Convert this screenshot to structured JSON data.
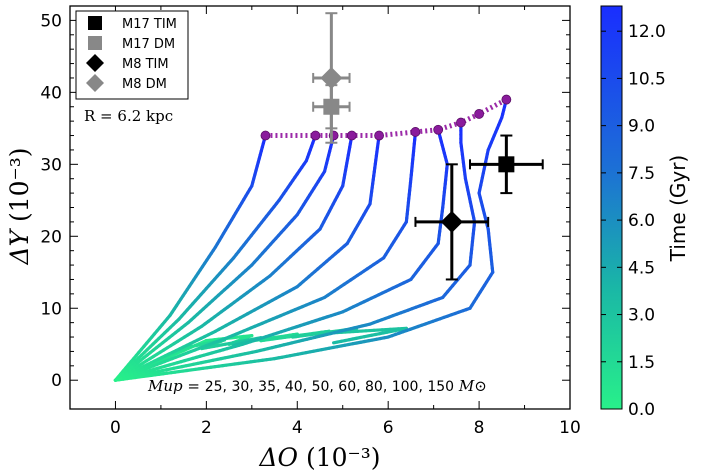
{
  "chart_data": {
    "type": "line",
    "title": "",
    "xlabel": "ΔO",
    "xlabel_unit": "(10⁻³)",
    "ylabel": "ΔY",
    "ylabel_unit": "(10⁻³)",
    "xlim": [
      -1,
      10
    ],
    "ylim": [
      -4,
      52
    ],
    "xticks": [
      "0",
      "2",
      "4",
      "6",
      "8",
      "10"
    ],
    "yticks": [
      "0",
      "10",
      "20",
      "30",
      "40",
      "50"
    ],
    "grid": false,
    "legend_position": "top-left",
    "legend": [
      {
        "label": "M17 TIM",
        "marker": "square",
        "color": "#000000"
      },
      {
        "label": "M17 DM",
        "marker": "square",
        "color": "#888888"
      },
      {
        "label": "M8 TIM",
        "marker": "diamond",
        "color": "#000000"
      },
      {
        "label": "M8 DM",
        "marker": "diamond",
        "color": "#888888"
      }
    ],
    "annotation_radius": "R = 6.2 kpc",
    "annotation_mup_prefix": "Mup = ",
    "annotation_mup_values": "25, 30, 35, 40, 50, 60, 80, 100, 150",
    "annotation_mup_unit": "M⊙",
    "series": [
      {
        "name": "Mup=25",
        "points": [
          [
            0,
            0
          ],
          [
            1.2,
            9
          ],
          [
            2.2,
            18.5
          ],
          [
            3,
            27
          ],
          [
            3.3,
            34
          ]
        ]
      },
      {
        "name": "Mup=30",
        "points": [
          [
            0,
            0
          ],
          [
            1.4,
            8.5
          ],
          [
            2.6,
            17
          ],
          [
            3.6,
            25
          ],
          [
            4.2,
            30.5
          ],
          [
            4.4,
            34
          ]
        ]
      },
      {
        "name": "Mup=35",
        "points": [
          [
            0,
            0
          ],
          [
            1.6,
            8
          ],
          [
            3,
            16
          ],
          [
            4,
            23
          ],
          [
            4.6,
            29
          ],
          [
            4.8,
            34
          ]
        ]
      },
      {
        "name": "Mup=40",
        "points": [
          [
            0,
            0
          ],
          [
            1.9,
            7.5
          ],
          [
            3.4,
            14.5
          ],
          [
            4.5,
            21
          ],
          [
            5,
            27
          ],
          [
            5.2,
            34
          ]
        ]
      },
      {
        "name": "Mup=50",
        "points": [
          [
            0,
            0
          ],
          [
            2.2,
            6.8
          ],
          [
            4,
            13
          ],
          [
            5.1,
            19
          ],
          [
            5.6,
            24.5
          ],
          [
            5.8,
            34
          ]
        ]
      },
      {
        "name": "Mup=60",
        "points": [
          [
            0,
            0
          ],
          [
            2.5,
            6
          ],
          [
            4.6,
            11.5
          ],
          [
            5.9,
            17
          ],
          [
            6.4,
            22
          ],
          [
            6.5,
            28
          ],
          [
            6.6,
            34.5
          ]
        ]
      },
      {
        "name": "Mup=80",
        "points": [
          [
            0,
            0
          ],
          [
            2.8,
            5
          ],
          [
            5,
            9.5
          ],
          [
            6.5,
            14
          ],
          [
            7.1,
            19
          ],
          [
            7.2,
            24
          ],
          [
            7.3,
            30
          ],
          [
            7.1,
            34.8
          ]
        ]
      },
      {
        "name": "Mup=100",
        "points": [
          [
            0,
            0
          ],
          [
            3.1,
            4
          ],
          [
            5.6,
            7.8
          ],
          [
            7.2,
            11.5
          ],
          [
            7.8,
            16
          ],
          [
            7.9,
            22
          ],
          [
            7.7,
            28
          ],
          [
            7.6,
            33
          ],
          [
            7.6,
            35.8
          ]
        ]
      },
      {
        "name": "Mup=150",
        "points": [
          [
            0,
            0
          ],
          [
            3.5,
            3
          ],
          [
            6,
            6
          ],
          [
            7.8,
            10
          ],
          [
            8.3,
            15
          ],
          [
            8.2,
            21
          ],
          [
            8.0,
            26
          ],
          [
            8.2,
            32
          ],
          [
            8.5,
            36.5
          ],
          [
            8.6,
            39
          ]
        ]
      }
    ],
    "spiral_tails": [
      {
        "name": "Mup=150",
        "points": [
          [
            0,
            0
          ],
          [
            2,
            5.5
          ],
          [
            3,
            6.2
          ],
          [
            2.5,
            5
          ],
          [
            4,
            6.4
          ],
          [
            3.2,
            5.5
          ],
          [
            4.7,
            6.8
          ],
          [
            3.9,
            6
          ],
          [
            5.3,
            7.2
          ],
          [
            4.8,
            6.6
          ],
          [
            6.4,
            7.2
          ],
          [
            4.8,
            5.2
          ]
        ]
      },
      {
        "name": "Mup=100",
        "points": [
          [
            0,
            0
          ],
          [
            1.6,
            4.6
          ],
          [
            2.4,
            5.6
          ],
          [
            1.9,
            4.4
          ],
          [
            3.2,
            5.9
          ],
          [
            2.6,
            4.8
          ]
        ]
      }
    ],
    "endpoints": [
      [
        3.3,
        34
      ],
      [
        4.4,
        34
      ],
      [
        4.8,
        34
      ],
      [
        5.2,
        34
      ],
      [
        5.8,
        34
      ],
      [
        6.6,
        34.5
      ],
      [
        7.1,
        34.8
      ],
      [
        7.6,
        35.8
      ],
      [
        8.0,
        37
      ],
      [
        8.6,
        39
      ]
    ],
    "observations": [
      {
        "name": "M17 TIM",
        "marker": "square",
        "color": "#000000",
        "x": 8.6,
        "y": 30,
        "xerr": 0.8,
        "yerr": 4
      },
      {
        "name": "M17 DM",
        "marker": "square",
        "color": "#888888",
        "x": 4.75,
        "y": 38,
        "xerr": 0.4,
        "yerr": 3
      },
      {
        "name": "M8 TIM",
        "marker": "diamond",
        "color": "#000000",
        "x": 7.4,
        "y": 22,
        "xerr": 0.8,
        "yerr": 8
      },
      {
        "name": "M8 DM",
        "marker": "diamond",
        "color": "#888888",
        "x": 4.75,
        "y": 42,
        "xerr": 0.4,
        "yerr": 9
      }
    ],
    "colorbar": {
      "label": "Time (Gyr)",
      "min": 0,
      "max": 12.8,
      "ticks": [
        "0.0",
        "1.5",
        "3.0",
        "4.5",
        "6.0",
        "7.5",
        "9.0",
        "10.5",
        "12.0"
      ],
      "color_low": "#28f08a",
      "color_high": "#1a2eff"
    },
    "colors": {
      "endpoint": "#8a1b9c",
      "connector": "#9b2aa8"
    }
  }
}
